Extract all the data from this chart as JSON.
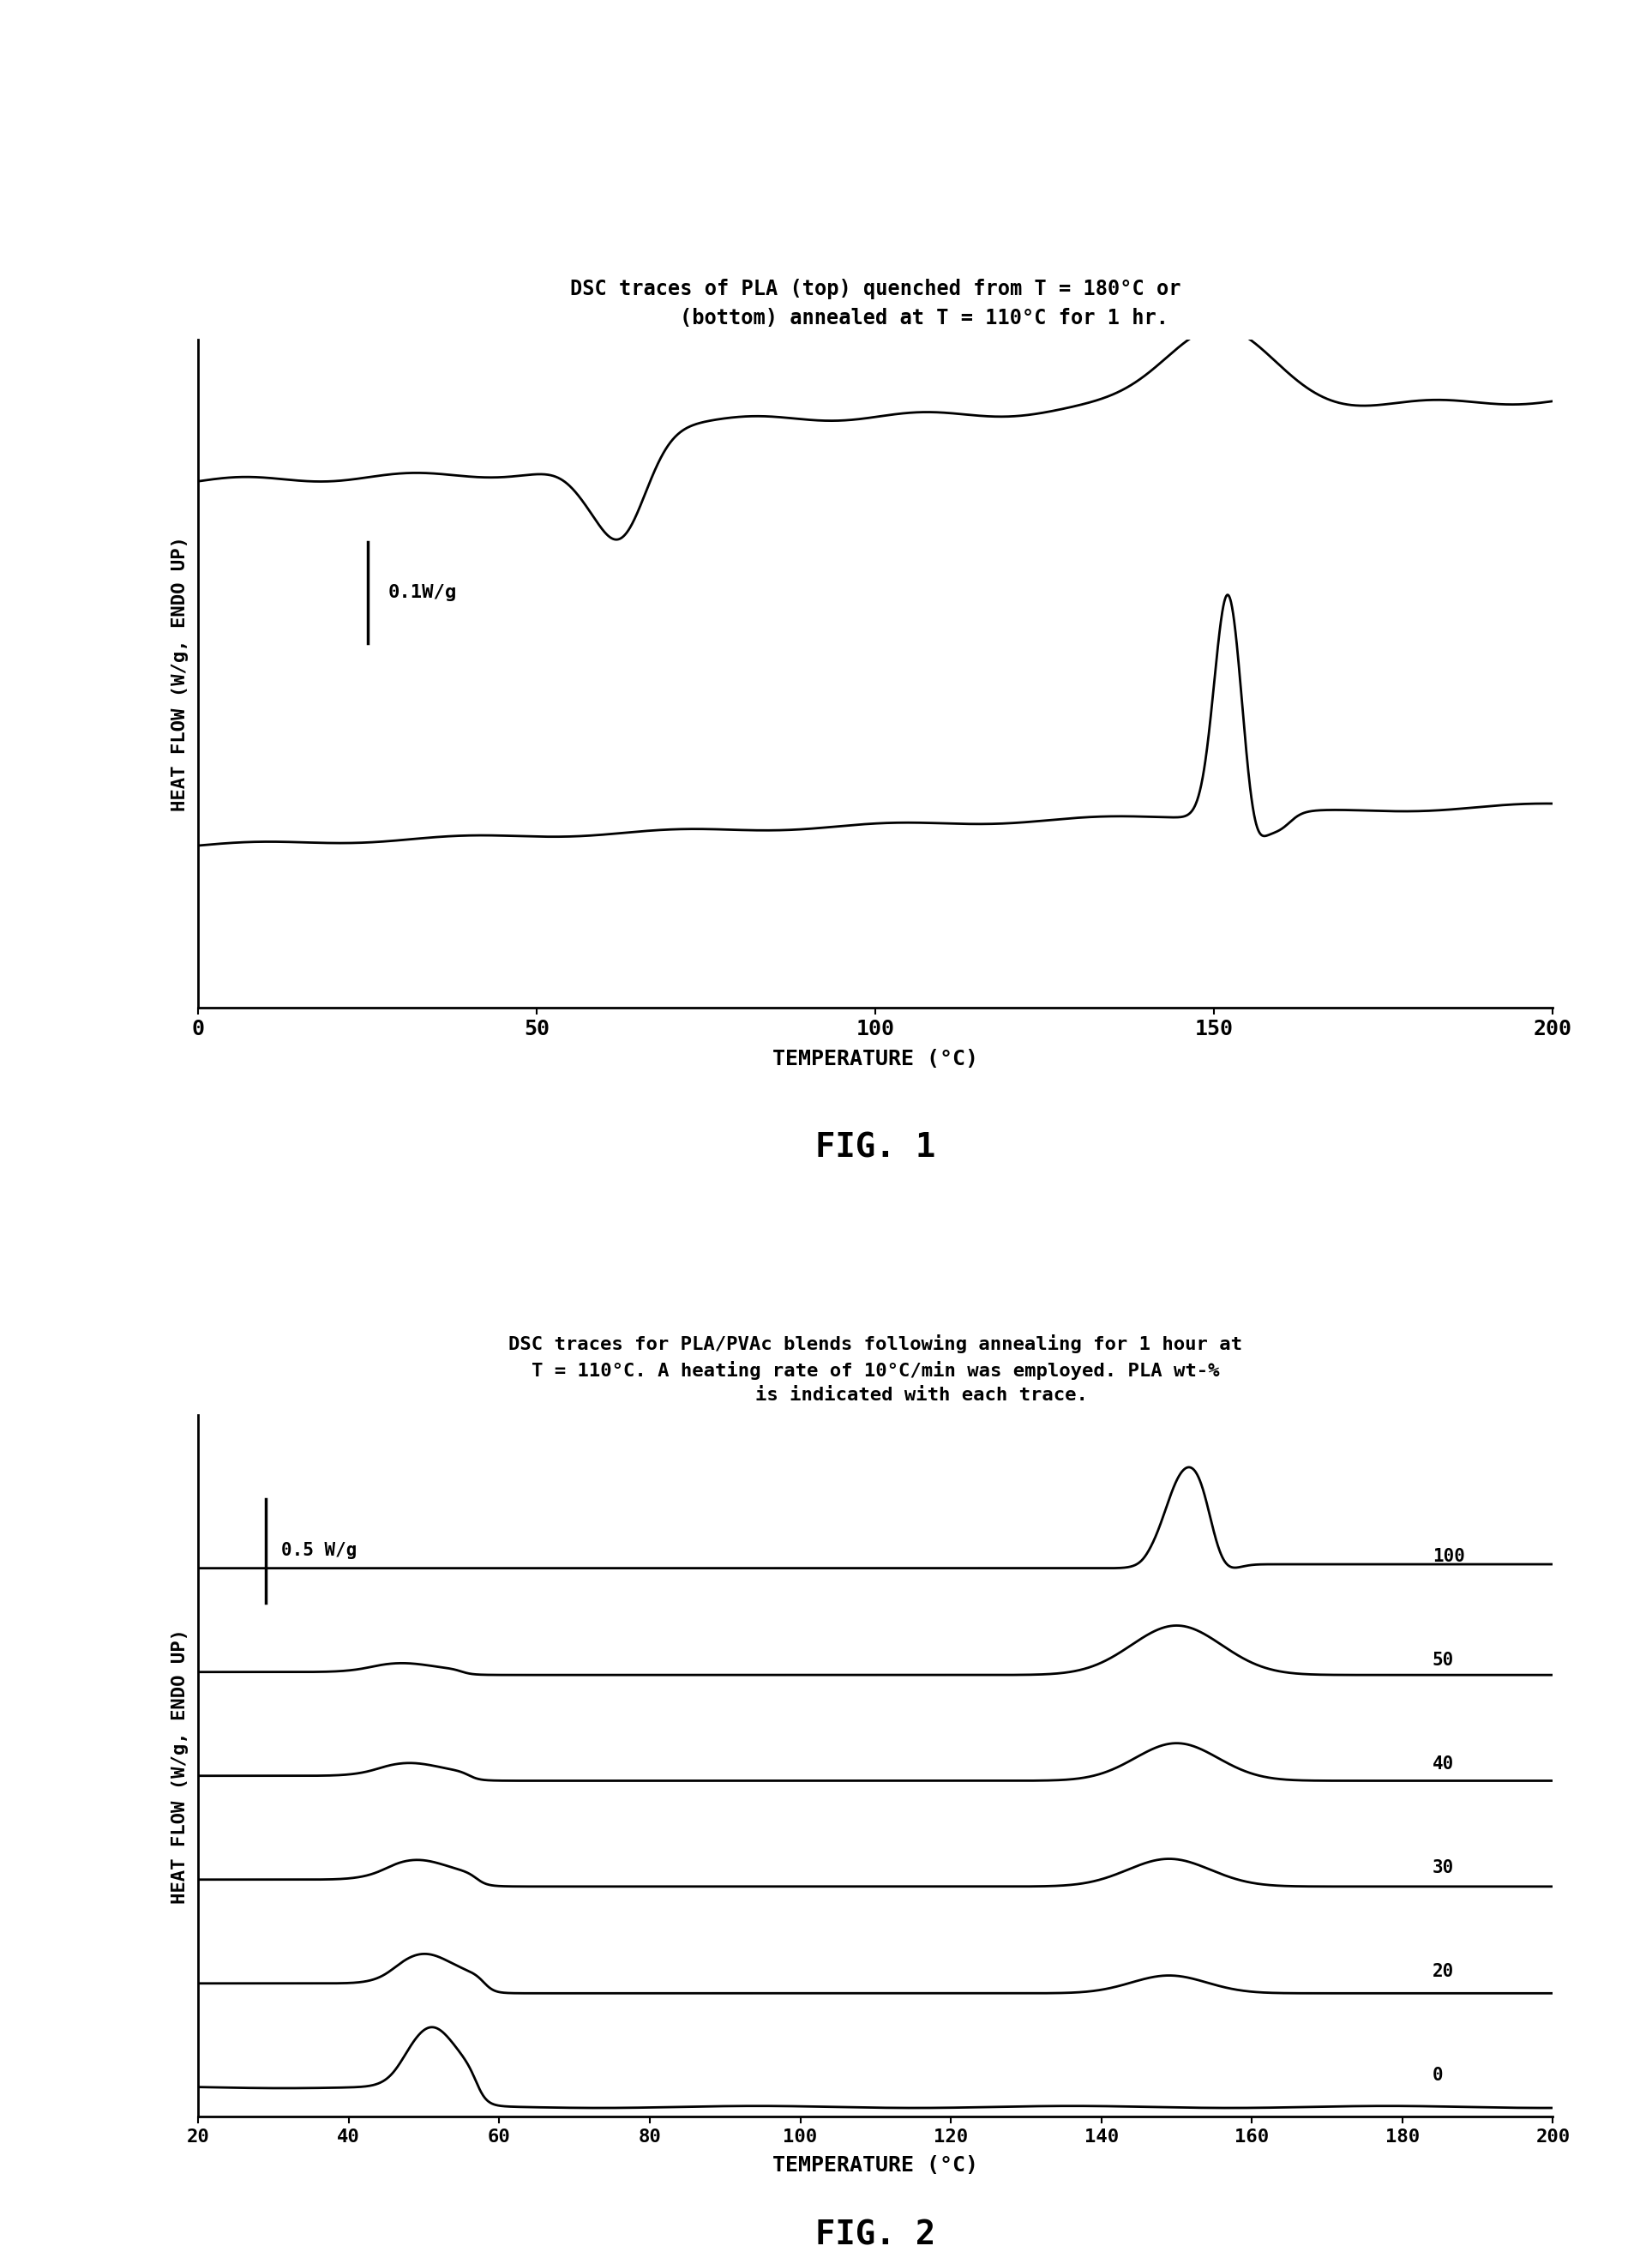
{
  "fig1_title_line1": "DSC traces of PLA (top) quenched from T = 180°C or",
  "fig1_title_line2": "        (bottom) annealed at T = 110°C for 1 hr.",
  "fig1_xlabel": "TEMPERATURE (°C)",
  "fig1_ylabel": "HEAT FLOW (W/g, ENDO UP)",
  "fig1_xlim": [
    0,
    200
  ],
  "fig1_xticks": [
    0,
    50,
    100,
    150,
    200
  ],
  "fig1_scale_label": "0.1W/g",
  "fig1_label": "FIG. 1",
  "fig2_title_line1": "DSC traces for PLA/PVAc blends following annealing for 1 hour at",
  "fig2_title_line2": "T = 110°C. A heating rate of 10°C/min was employed. PLA wt-%",
  "fig2_title_line3": "        is indicated with each trace.",
  "fig2_xlabel": "TEMPERATURE (°C)",
  "fig2_ylabel": "HEAT FLOW (W/g, ENDO UP)",
  "fig2_xlim": [
    20,
    200
  ],
  "fig2_xticks": [
    20,
    40,
    60,
    80,
    100,
    120,
    140,
    160,
    180,
    200
  ],
  "fig2_scale_label": "0.5 W/g",
  "fig2_label": "FIG. 2",
  "fig2_trace_labels": [
    "100",
    "50",
    "40",
    "30",
    "20",
    "0"
  ],
  "fig2_pla_weights": [
    100,
    50,
    40,
    30,
    20,
    0
  ]
}
